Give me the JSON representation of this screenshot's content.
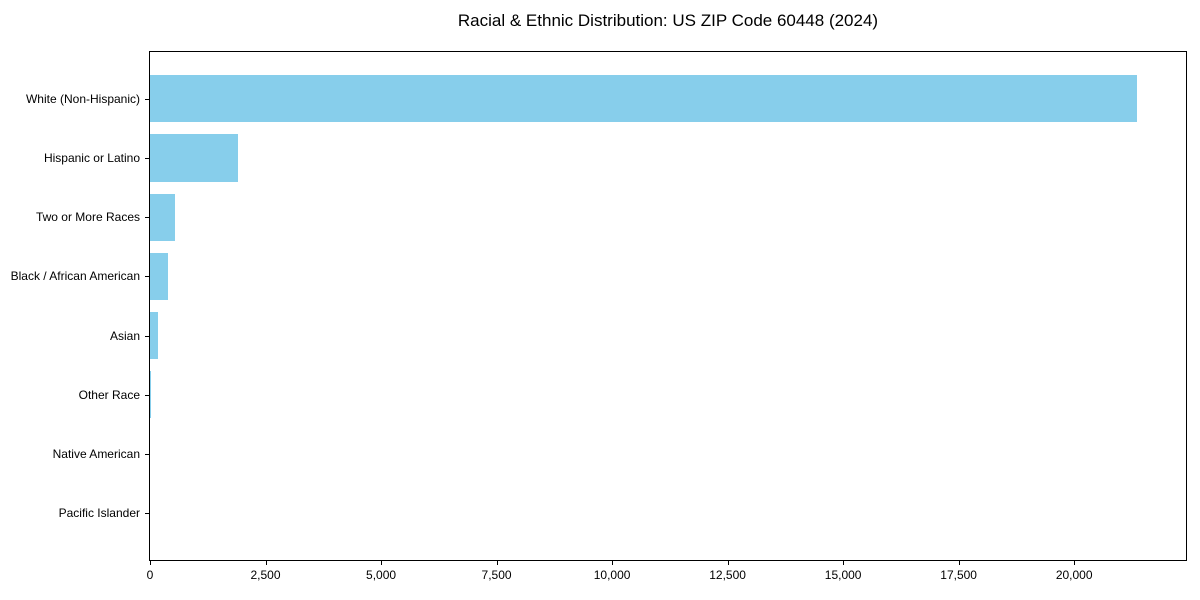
{
  "chart_data": {
    "type": "bar",
    "orientation": "horizontal",
    "title": "Racial & Ethnic Distribution: US ZIP Code 60448 (2024)",
    "categories": [
      "White (Non-Hispanic)",
      "Hispanic or Latino",
      "Two or More Races",
      "Black / African American",
      "Asian",
      "Other Race",
      "Native American",
      "Pacific Islander"
    ],
    "values": [
      21350,
      1900,
      540,
      380,
      180,
      20,
      0,
      0
    ],
    "bar_color": "#87CEEB",
    "xlabel": "",
    "ylabel": "",
    "xlim": [
      0,
      22420
    ],
    "x_ticks": [
      0,
      2500,
      5000,
      7500,
      10000,
      12500,
      15000,
      17500,
      20000
    ],
    "x_tick_labels": [
      "0",
      "2,500",
      "5,000",
      "7,500",
      "10,000",
      "12,500",
      "15,000",
      "17,500",
      "20,000"
    ],
    "grid": false,
    "legend": null,
    "bar_height_fraction": 0.8
  }
}
